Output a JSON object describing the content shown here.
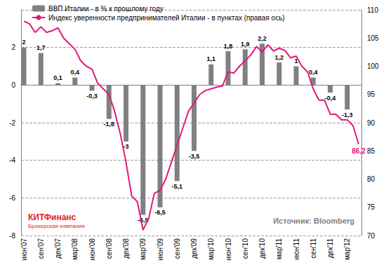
{
  "chart_data": {
    "type": "bar",
    "categories": [
      "июн'07",
      null,
      null,
      "сен'07",
      null,
      null,
      "дек'07",
      null,
      null,
      "мар'08",
      null,
      null,
      "июн'08",
      null,
      null,
      "сен'08",
      null,
      null,
      "дек'08",
      null,
      null,
      "мар'09",
      null,
      null,
      "июн'09",
      null,
      null,
      "сен'09",
      null,
      null,
      "дек'09",
      null,
      null,
      "мар'10",
      null,
      null,
      "июн'10",
      null,
      null,
      "сен'10",
      null,
      null,
      "дек'10",
      null,
      null,
      "мар'11",
      null,
      null,
      "июн'11",
      null,
      null,
      "сен'11",
      null,
      null,
      "дек'11",
      null,
      null,
      "мар'12",
      null,
      null
    ],
    "series": [
      {
        "name": "ВВП Италии - в % к прошлому году",
        "type": "bar",
        "color": "#808080",
        "values": [
          2,
          null,
          null,
          1.7,
          null,
          null,
          0.1,
          null,
          null,
          0.4,
          null,
          null,
          -0.3,
          null,
          null,
          -1.8,
          null,
          null,
          -3,
          null,
          null,
          -6.9,
          null,
          null,
          -6.5,
          null,
          null,
          -5.1,
          null,
          null,
          -3.5,
          null,
          null,
          1.1,
          null,
          null,
          1.8,
          null,
          null,
          1.9,
          null,
          null,
          2.2,
          null,
          null,
          1.2,
          null,
          null,
          1,
          null,
          null,
          0.4,
          null,
          null,
          -0.4,
          null,
          null,
          -1.3,
          null,
          null
        ],
        "value_labels": [
          "2",
          null,
          null,
          "1,7",
          null,
          null,
          "0,1",
          null,
          null,
          "0,4",
          null,
          null,
          "-0,3",
          null,
          null,
          "-1,8",
          null,
          null,
          "-3",
          null,
          null,
          "-6,9",
          null,
          null,
          "-6,5",
          null,
          null,
          "-5,1",
          null,
          null,
          "-3,5",
          null,
          null,
          "1,1",
          null,
          null,
          "1,8",
          null,
          null,
          "1,9",
          null,
          null,
          "2,2",
          null,
          null,
          "1,2",
          null,
          null,
          "1",
          null,
          null,
          "0,4",
          null,
          null,
          "-0,4",
          null,
          null,
          "-1,3",
          null,
          null
        ]
      },
      {
        "name": "Индекс уверенности предпринимателей Италии - в пунктах (правая ось)",
        "type": "line",
        "axis": "y2",
        "color": "#e2187f",
        "values": [
          108,
          107.5,
          106,
          107,
          106,
          106.3,
          106.8,
          105,
          104,
          103,
          101,
          100,
          99.5,
          97,
          96,
          95,
          92,
          88,
          83,
          77,
          76,
          71,
          73,
          77.5,
          78,
          80,
          83,
          86,
          89,
          92,
          93.5,
          95,
          95.7,
          96,
          96.3,
          96.5,
          99,
          98.8,
          100,
          101,
          102,
          103.5,
          102.5,
          103.8,
          102.7,
          103.2,
          102.8,
          101.5,
          101.8,
          100,
          99,
          96,
          94,
          94,
          91.5,
          91.5,
          90.5,
          90.5,
          89.5,
          86.2
        ],
        "value_labels": [
          null,
          null,
          null,
          null,
          null,
          null,
          null,
          null,
          null,
          null,
          null,
          null,
          null,
          null,
          null,
          null,
          null,
          null,
          null,
          null,
          null,
          null,
          null,
          null,
          null,
          null,
          null,
          null,
          null,
          null,
          null,
          null,
          null,
          null,
          null,
          null,
          null,
          null,
          null,
          null,
          null,
          null,
          null,
          null,
          null,
          null,
          null,
          null,
          null,
          null,
          null,
          null,
          null,
          null,
          null,
          null,
          null,
          null,
          null,
          "86,2"
        ]
      }
    ],
    "ylim": [
      -8,
      4
    ],
    "yticks": [
      -8,
      -6,
      -4,
      -2,
      0,
      2
    ],
    "y2lim": [
      70,
      110
    ],
    "y2ticks": [
      70,
      75,
      80,
      85,
      90,
      95,
      100,
      105,
      110
    ],
    "grid": true,
    "legend": "upper left",
    "data_labels": true,
    "annotations": [
      {
        "text": "Источник: Bloomberg"
      },
      {
        "text": "КИТФинанс"
      },
      {
        "text": "Брокерская компания"
      }
    ]
  }
}
